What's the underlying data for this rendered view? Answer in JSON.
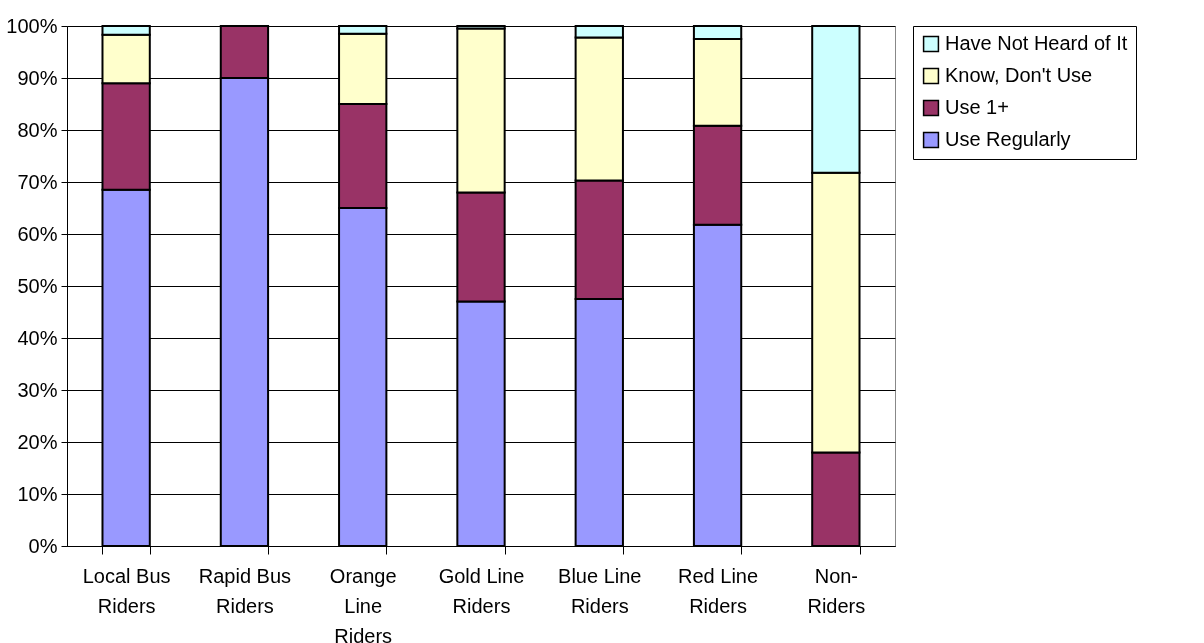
{
  "chart_data": {
    "type": "bar",
    "stacked": true,
    "categories": [
      "Local Bus Riders",
      "Rapid Bus Riders",
      "Orange Line Riders",
      "Gold Line Riders",
      "Blue Line Riders",
      "Red Line Riders",
      "Non-Riders"
    ],
    "series": [
      {
        "name": "Use Regularly",
        "color": "#9999ff",
        "values": [
          68.5,
          90,
          65,
          47,
          47.5,
          61.8,
          null
        ]
      },
      {
        "name": "Use 1+",
        "color": "#993366",
        "values": [
          20.5,
          10,
          20,
          21,
          22.8,
          19,
          18
        ]
      },
      {
        "name": "Know, Don't Use",
        "color": "#ffffcc",
        "values": [
          9.3,
          null,
          13.5,
          31.5,
          27.5,
          16.7,
          53.8
        ]
      },
      {
        "name": "Have Not Heard of It",
        "color": "#ccffff",
        "values": [
          1.7,
          null,
          1.5,
          0.5,
          2.2,
          2.5,
          28.2
        ]
      }
    ],
    "ylim": [
      0,
      100
    ],
    "yticks": [
      {
        "value": 0,
        "label": "0%"
      },
      {
        "value": 10,
        "label": "10%"
      },
      {
        "value": 20,
        "label": "20%"
      },
      {
        "value": 30,
        "label": "30%"
      },
      {
        "value": 40,
        "label": "40%"
      },
      {
        "value": 50,
        "label": "50%"
      },
      {
        "value": 60,
        "label": "60%"
      },
      {
        "value": 70,
        "label": "70%"
      },
      {
        "value": 80,
        "label": "80%"
      },
      {
        "value": 90,
        "label": "90%"
      },
      {
        "value": 100,
        "label": "100%"
      }
    ],
    "grid": "y",
    "legend": "right"
  }
}
